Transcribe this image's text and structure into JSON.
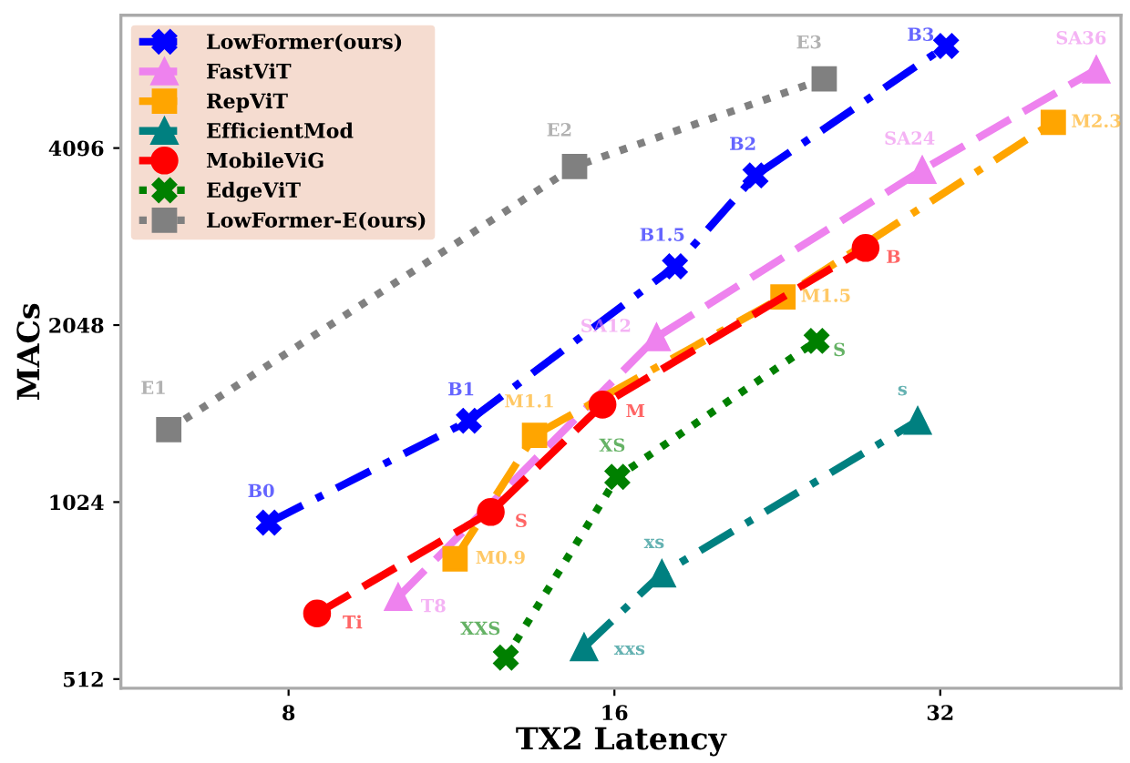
{
  "chart_data": {
    "type": "line",
    "xlabel": "TX2 Latency",
    "ylabel": "MACs",
    "log": "xy",
    "xlim": [
      5.6,
      47
    ],
    "ylim": [
      494,
      6890
    ],
    "xticks": [
      8,
      16,
      32
    ],
    "yticks": [
      512,
      1024,
      2048,
      4096
    ],
    "grid": false,
    "legend": "top left",
    "series": [
      {
        "name": "LowFormer(ours)",
        "color": "#0000ff",
        "marker": "cross",
        "line_style": "dashdot",
        "x": [
          7.67,
          11.74,
          18.2,
          21.6,
          32.4
        ],
        "values": [
          945,
          1408,
          2577,
          3680,
          6110
        ],
        "value_labels": [
          "B0",
          "B1",
          "B1.5",
          "B2",
          "B3"
        ]
      },
      {
        "name": "FastViT",
        "color": "#ee82ee",
        "marker": "triangle",
        "line_style": "dashed",
        "x": [
          10.1,
          17.5,
          30.8,
          44.6
        ],
        "values": [
          706,
          1953,
          3760,
          5570
        ],
        "value_labels": [
          "T8",
          "SA12",
          "SA24",
          "SA36"
        ]
      },
      {
        "name": "RepViT",
        "color": "#ffa500",
        "marker": "square",
        "line_style": "dashdot",
        "x": [
          11.4,
          13.5,
          22.9,
          40.7
        ],
        "values": [
          820,
          1330,
          2287,
          4530
        ],
        "value_labels": [
          "M0.9",
          "M1.1",
          "M1.5",
          "M2.3"
        ]
      },
      {
        "name": "EfficientMod",
        "color": "#008080",
        "marker": "triangle",
        "line_style": "dashdot",
        "x": [
          15.0,
          17.7,
          30.5
        ],
        "values": [
          580,
          774,
          1408
        ],
        "value_labels": [
          "xxs",
          "xs",
          "s"
        ]
      },
      {
        "name": "MobileViG",
        "color": "#ff0000",
        "marker": "circle",
        "line_style": "dashed",
        "x": [
          8.5,
          12.3,
          15.6,
          27.3
        ],
        "values": [
          662,
          985,
          1500,
          2770
        ],
        "value_labels": [
          "Ti",
          "S",
          "M",
          "B"
        ]
      },
      {
        "name": "EdgeViT",
        "color": "#008000",
        "marker": "cross",
        "line_style": "dotted",
        "x": [
          12.7,
          16.1,
          24.6
        ],
        "values": [
          557,
          1130,
          1925
        ],
        "value_labels": [
          "XXS",
          "XS",
          "S"
        ]
      },
      {
        "name": "LowFormer-E(ours)",
        "color": "#808080",
        "marker": "square",
        "line_style": "dotted",
        "x": [
          6.2,
          14.7,
          25.0
        ],
        "values": [
          1360,
          3810,
          5370
        ],
        "value_labels": [
          "E1",
          "E2",
          "E3"
        ]
      }
    ]
  }
}
